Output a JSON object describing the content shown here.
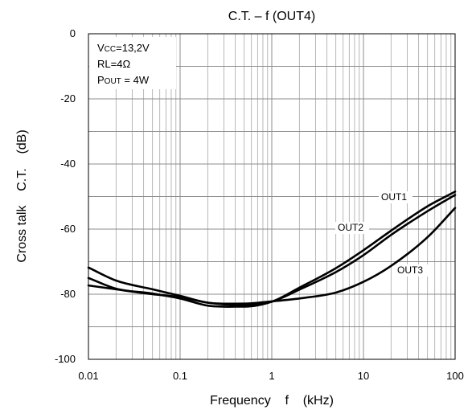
{
  "chart_data": {
    "type": "line",
    "title": "C.T. – f (OUT4)",
    "xlabel": "Frequency    f    (kHz)",
    "ylabel": "Cross talk    C.T.    (dB)",
    "x_scale": "log",
    "xlim": [
      0.01,
      100
    ],
    "ylim": [
      -100,
      0
    ],
    "grid": true,
    "x_ticks": [
      0.01,
      0.1,
      1,
      10,
      100
    ],
    "x_tick_labels": [
      "0.01",
      "0.1",
      "1",
      "10",
      "100"
    ],
    "y_ticks": [
      0,
      -20,
      -40,
      -60,
      -80,
      -100
    ],
    "y_tick_labels": [
      "0",
      "-20",
      "-40",
      "-60",
      "-80",
      "-100"
    ],
    "conditions": [
      {
        "main": "V",
        "sub": "CC",
        "rest": "=13,2V"
      },
      {
        "main": "RL=4Ω",
        "sub": "",
        "rest": ""
      },
      {
        "main": "P",
        "sub": "OUT",
        "rest": " = 4W"
      }
    ],
    "series": [
      {
        "name": "OUT1",
        "x": [
          0.01,
          0.02,
          0.05,
          0.1,
          0.2,
          0.5,
          1,
          2,
          5,
          10,
          20,
          50,
          100
        ],
        "y": [
          -75,
          -78.3,
          -79.8,
          -81.3,
          -83.5,
          -83.8,
          -82.3,
          -78,
          -72,
          -66.5,
          -60.5,
          -53,
          -48.5
        ]
      },
      {
        "name": "OUT2",
        "x": [
          0.01,
          0.02,
          0.05,
          0.1,
          0.2,
          0.5,
          1,
          2,
          5,
          10,
          20,
          50,
          100
        ],
        "y": [
          -77.3,
          -78.5,
          -80,
          -80.9,
          -82.6,
          -83.4,
          -82.3,
          -78.6,
          -73.2,
          -68,
          -61.8,
          -54.5,
          -49.5
        ]
      },
      {
        "name": "OUT3",
        "x": [
          0.01,
          0.02,
          0.05,
          0.1,
          0.2,
          0.5,
          1,
          2,
          5,
          10,
          20,
          50,
          100
        ],
        "y": [
          -71.8,
          -75.8,
          -78.5,
          -80.5,
          -82.6,
          -82.9,
          -82.2,
          -81.3,
          -79.5,
          -76.2,
          -71.3,
          -62.5,
          -53.5
        ]
      }
    ]
  }
}
